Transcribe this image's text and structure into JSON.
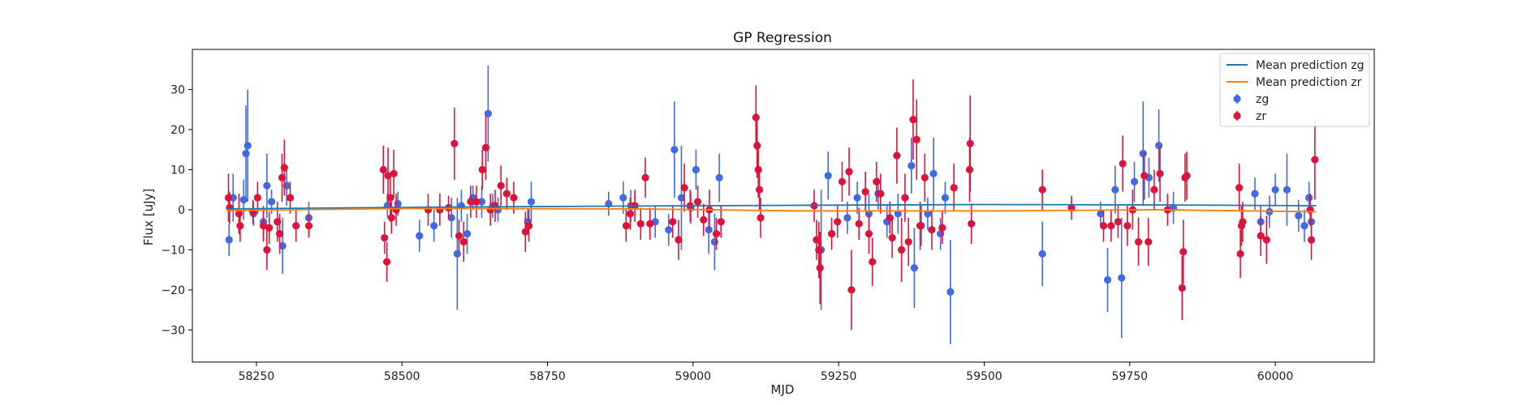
{
  "chart_data": {
    "type": "scatter",
    "title": "GP Regression",
    "xlabel": "MJD",
    "ylabel": "Flux [uJy]",
    "xlim": [
      58140,
      60170
    ],
    "ylim": [
      -38,
      40
    ],
    "xticks": [
      58250,
      58500,
      58750,
      59000,
      59250,
      59500,
      59750,
      60000
    ],
    "yticks": [
      -30,
      -20,
      -10,
      0,
      10,
      20,
      30
    ],
    "grid": false,
    "legend_position": "top-right",
    "lines": [
      {
        "name": "Mean prediction zg",
        "color": "#1f77b4",
        "x": [
          58200,
          58500,
          59000,
          59500,
          59800,
          60070
        ],
        "y": [
          0.2,
          0.6,
          1.0,
          1.3,
          1.2,
          1.0
        ]
      },
      {
        "name": "Mean prediction zr",
        "color": "#ff7f0e",
        "x": [
          58200,
          58500,
          58900,
          59200,
          59500,
          59800,
          60070
        ],
        "y": [
          -0.2,
          0.3,
          0.2,
          -0.3,
          -0.3,
          0.0,
          -0.5
        ]
      }
    ],
    "series": [
      {
        "name": "zg",
        "color": "#4169e1",
        "points": [
          [
            58203,
            -7.5,
            4
          ],
          [
            58210,
            3,
            6
          ],
          [
            58228,
            2.5,
            5
          ],
          [
            58232,
            14,
            12
          ],
          [
            58235,
            16,
            14
          ],
          [
            58245,
            -1,
            3
          ],
          [
            58262,
            -3,
            4
          ],
          [
            58268,
            6,
            8
          ],
          [
            58276,
            2,
            3
          ],
          [
            58295,
            -9,
            7
          ],
          [
            58302,
            6,
            5
          ],
          [
            58340,
            -2,
            4
          ],
          [
            58475,
            1,
            3
          ],
          [
            58493,
            1.5,
            3
          ],
          [
            58530,
            -6.5,
            4
          ],
          [
            58555,
            -4,
            4
          ],
          [
            58585,
            -2,
            5
          ],
          [
            58595,
            -11,
            14
          ],
          [
            58602,
            1,
            4
          ],
          [
            58612,
            -6,
            5
          ],
          [
            58622,
            3,
            3
          ],
          [
            58637,
            2,
            4
          ],
          [
            58648,
            24,
            12
          ],
          [
            58656,
            1,
            3
          ],
          [
            58665,
            0,
            3
          ],
          [
            58716,
            -3,
            3
          ],
          [
            58722,
            2,
            5
          ],
          [
            58855,
            1.5,
            3
          ],
          [
            58880,
            3,
            4
          ],
          [
            58893,
            1,
            4
          ],
          [
            58935,
            -3,
            4
          ],
          [
            58958,
            -5,
            4
          ],
          [
            58968,
            15,
            12
          ],
          [
            58980,
            3,
            13
          ],
          [
            58996,
            0.5,
            4
          ],
          [
            59005,
            10,
            5
          ],
          [
            59027,
            -5,
            6
          ],
          [
            59037,
            -8,
            7
          ],
          [
            59045,
            8,
            6
          ],
          [
            59220,
            -10,
            15
          ],
          [
            59232,
            8.5,
            6
          ],
          [
            59265,
            -2,
            4
          ],
          [
            59282,
            3,
            4
          ],
          [
            59302,
            -1,
            5
          ],
          [
            59318,
            4,
            4
          ],
          [
            59333,
            -3,
            4
          ],
          [
            59352,
            -1,
            5
          ],
          [
            59375,
            11,
            7
          ],
          [
            59380,
            -14.5,
            10
          ],
          [
            59392,
            -4,
            5
          ],
          [
            59403,
            -1,
            4
          ],
          [
            59413,
            9,
            9
          ],
          [
            59425,
            -6,
            4
          ],
          [
            59433,
            3,
            4
          ],
          [
            59442,
            -20.5,
            13
          ],
          [
            59600,
            -11,
            8
          ],
          [
            59700,
            -1,
            3
          ],
          [
            59712,
            -17.5,
            8
          ],
          [
            59725,
            5,
            6
          ],
          [
            59736,
            -17,
            15
          ],
          [
            59758,
            7,
            5
          ],
          [
            59773,
            14,
            13
          ],
          [
            59783,
            8,
            5
          ],
          [
            59800,
            16,
            9
          ],
          [
            59825,
            0.5,
            4
          ],
          [
            59965,
            4,
            4
          ],
          [
            59975,
            -3,
            4
          ],
          [
            59990,
            -0.5,
            4
          ],
          [
            60000,
            5,
            4
          ],
          [
            60020,
            5,
            9
          ],
          [
            60040,
            -1.5,
            4
          ],
          [
            60050,
            -4,
            4
          ],
          [
            60058,
            3,
            4
          ],
          [
            60062,
            -3,
            4
          ]
        ]
      },
      {
        "name": "zr",
        "color": "#dc143c",
        "points": [
          [
            58202,
            3,
            6
          ],
          [
            58204,
            0.5,
            4
          ],
          [
            58220,
            -1,
            5
          ],
          [
            58222,
            -4,
            4
          ],
          [
            58244,
            -0.5,
            3
          ],
          [
            58252,
            3,
            4
          ],
          [
            58262,
            -4,
            4
          ],
          [
            58268,
            -10,
            5
          ],
          [
            58272,
            -4.5,
            4
          ],
          [
            58286,
            -3,
            5
          ],
          [
            58290,
            -6,
            5
          ],
          [
            58294,
            8,
            6
          ],
          [
            58298,
            10.5,
            7
          ],
          [
            58308,
            3,
            4
          ],
          [
            58318,
            -4,
            4
          ],
          [
            58340,
            -4,
            3
          ],
          [
            58468,
            10,
            6
          ],
          [
            58470,
            -7,
            4
          ],
          [
            58474,
            -13,
            5
          ],
          [
            58476,
            8.5,
            7
          ],
          [
            58480,
            3,
            6
          ],
          [
            58482,
            -2,
            4
          ],
          [
            58486,
            9,
            6
          ],
          [
            58490,
            0,
            4
          ],
          [
            58545,
            0,
            4
          ],
          [
            58565,
            0,
            4
          ],
          [
            58580,
            0.5,
            3
          ],
          [
            58590,
            16.5,
            9
          ],
          [
            58598,
            -6.5,
            4
          ],
          [
            58606,
            -8,
            5
          ],
          [
            58618,
            2,
            4
          ],
          [
            58628,
            2,
            4
          ],
          [
            58638,
            10,
            5
          ],
          [
            58644,
            15.5,
            8
          ],
          [
            58652,
            0,
            4
          ],
          [
            58660,
            1,
            4
          ],
          [
            58670,
            6,
            5
          ],
          [
            58680,
            4,
            4
          ],
          [
            58692,
            3,
            4
          ],
          [
            58712,
            -5.5,
            5
          ],
          [
            58718,
            -4,
            4
          ],
          [
            58885,
            -4,
            4
          ],
          [
            58892,
            -1,
            4
          ],
          [
            58900,
            1,
            4
          ],
          [
            58910,
            -3.5,
            4
          ],
          [
            58918,
            8,
            5
          ],
          [
            58926,
            -3.5,
            4
          ],
          [
            58965,
            -3,
            4
          ],
          [
            58975,
            -7.5,
            5
          ],
          [
            58985,
            5.5,
            6
          ],
          [
            58995,
            1,
            4
          ],
          [
            59008,
            2,
            4
          ],
          [
            59018,
            -2.5,
            4
          ],
          [
            59028,
            0,
            5
          ],
          [
            59040,
            -6,
            4
          ],
          [
            59048,
            -3,
            4
          ],
          [
            59108,
            23,
            8
          ],
          [
            59110,
            16,
            8
          ],
          [
            59112,
            10,
            7
          ],
          [
            59114,
            5,
            5
          ],
          [
            59116,
            -2,
            5
          ],
          [
            59208,
            1,
            4
          ],
          [
            59212,
            -7.5,
            5
          ],
          [
            59216,
            -10,
            7
          ],
          [
            59218,
            -14.5,
            9
          ],
          [
            59238,
            -6,
            4
          ],
          [
            59248,
            -3,
            4
          ],
          [
            59256,
            7,
            5
          ],
          [
            59268,
            9.5,
            6
          ],
          [
            59272,
            -20,
            10
          ],
          [
            59285,
            -3.5,
            4
          ],
          [
            59296,
            4.5,
            5
          ],
          [
            59302,
            -6,
            5
          ],
          [
            59308,
            -13,
            6
          ],
          [
            59315,
            7,
            5
          ],
          [
            59322,
            4,
            5
          ],
          [
            59338,
            -2,
            4
          ],
          [
            59342,
            -7,
            5
          ],
          [
            59350,
            13.5,
            7
          ],
          [
            59358,
            -10,
            8
          ],
          [
            59364,
            3,
            6
          ],
          [
            59370,
            -8,
            6
          ],
          [
            59378,
            22.5,
            10
          ],
          [
            59384,
            17.5,
            10
          ],
          [
            59390,
            -4,
            6
          ],
          [
            59398,
            8,
            6
          ],
          [
            59410,
            -5,
            5
          ],
          [
            59428,
            -4.5,
            4
          ],
          [
            59448,
            5.5,
            6
          ],
          [
            59475,
            10,
            8
          ],
          [
            59476,
            16.5,
            12
          ],
          [
            59478,
            -3.5,
            5
          ],
          [
            59600,
            5,
            5
          ],
          [
            59650,
            0.5,
            3
          ],
          [
            59705,
            -4,
            4
          ],
          [
            59718,
            -4,
            4
          ],
          [
            59730,
            -3,
            4
          ],
          [
            59738,
            11.5,
            7
          ],
          [
            59746,
            -4,
            5
          ],
          [
            59755,
            0,
            5
          ],
          [
            59765,
            -8,
            6
          ],
          [
            59775,
            8.5,
            6
          ],
          [
            59782,
            -8,
            6
          ],
          [
            59792,
            5,
            5
          ],
          [
            59802,
            9,
            7
          ],
          [
            59815,
            0,
            4
          ],
          [
            59840,
            -19.5,
            8
          ],
          [
            59842,
            -10.5,
            8
          ],
          [
            59845,
            8,
            6
          ],
          [
            59848,
            8.5,
            6
          ],
          [
            59938,
            5.5,
            6
          ],
          [
            59940,
            -11,
            6
          ],
          [
            59942,
            -4,
            5
          ],
          [
            59944,
            -3,
            5
          ],
          [
            59975,
            -6.5,
            5
          ],
          [
            59985,
            -7.5,
            6
          ],
          [
            60060,
            0,
            4
          ],
          [
            60062,
            -7.5,
            5
          ],
          [
            60068,
            12.5,
            10
          ]
        ]
      }
    ]
  }
}
